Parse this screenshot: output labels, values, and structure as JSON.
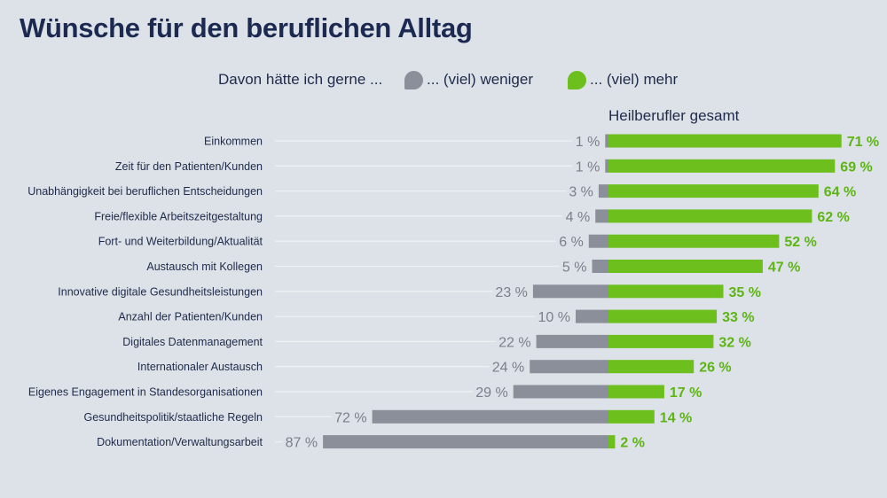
{
  "title": "Wünsche für den beruflichen Alltag",
  "legend": {
    "intro": "Davon hätte ich gerne ...",
    "less_label": "... (viel) weniger",
    "more_label": "... (viel) mehr"
  },
  "column_header": "Heilberufler gesamt",
  "colors": {
    "less": "#8b8f99",
    "more": "#6cbf1c",
    "more_text": "#5db513",
    "less_text": "#7a7f8a",
    "leader": "#eef1f4"
  },
  "chart_data": {
    "type": "bar",
    "orientation": "horizontal-diverging",
    "title": "Wünsche für den beruflichen Alltag",
    "categories": [
      "Einkommen",
      "Zeit für den Patienten/Kunden",
      "Unabhängigkeit bei beruflichen Entscheidungen",
      "Freie/flexible Arbeitszeitgestaltung",
      "Fort- und Weiterbildung/Aktualität",
      "Austausch mit Kollegen",
      "Innovative digitale Gesundheitsleistungen",
      "Anzahl der Patienten/Kunden",
      "Digitales Datenmanagement",
      "Internationaler Austausch",
      "Eigenes Engagement in Standesorganisationen",
      "Gesundheitspolitik/staatliche Regeln",
      "Dokumentation/Verwaltungsarbeit"
    ],
    "series": [
      {
        "name": "... (viel) weniger",
        "values": [
          1,
          1,
          3,
          4,
          6,
          5,
          23,
          10,
          22,
          24,
          29,
          72,
          87
        ],
        "labels": [
          "1 %",
          "1 %",
          "3 %",
          "4 %",
          "6 %",
          "5 %",
          "23 %",
          "10 %",
          "22 %",
          "24 %",
          "29 %",
          "72 %",
          "87 %"
        ]
      },
      {
        "name": "... (viel) mehr",
        "values": [
          71,
          69,
          64,
          62,
          52,
          47,
          35,
          33,
          32,
          26,
          17,
          14,
          2
        ],
        "labels": [
          "71 %",
          "69 %",
          "64 %",
          "62 %",
          "52 %",
          "47 %",
          "35 %",
          "33 %",
          "32 %",
          "26 %",
          "17 %",
          "14 %",
          "2 %"
        ]
      }
    ],
    "unit": "%",
    "grid": false,
    "legend_position": "top"
  }
}
